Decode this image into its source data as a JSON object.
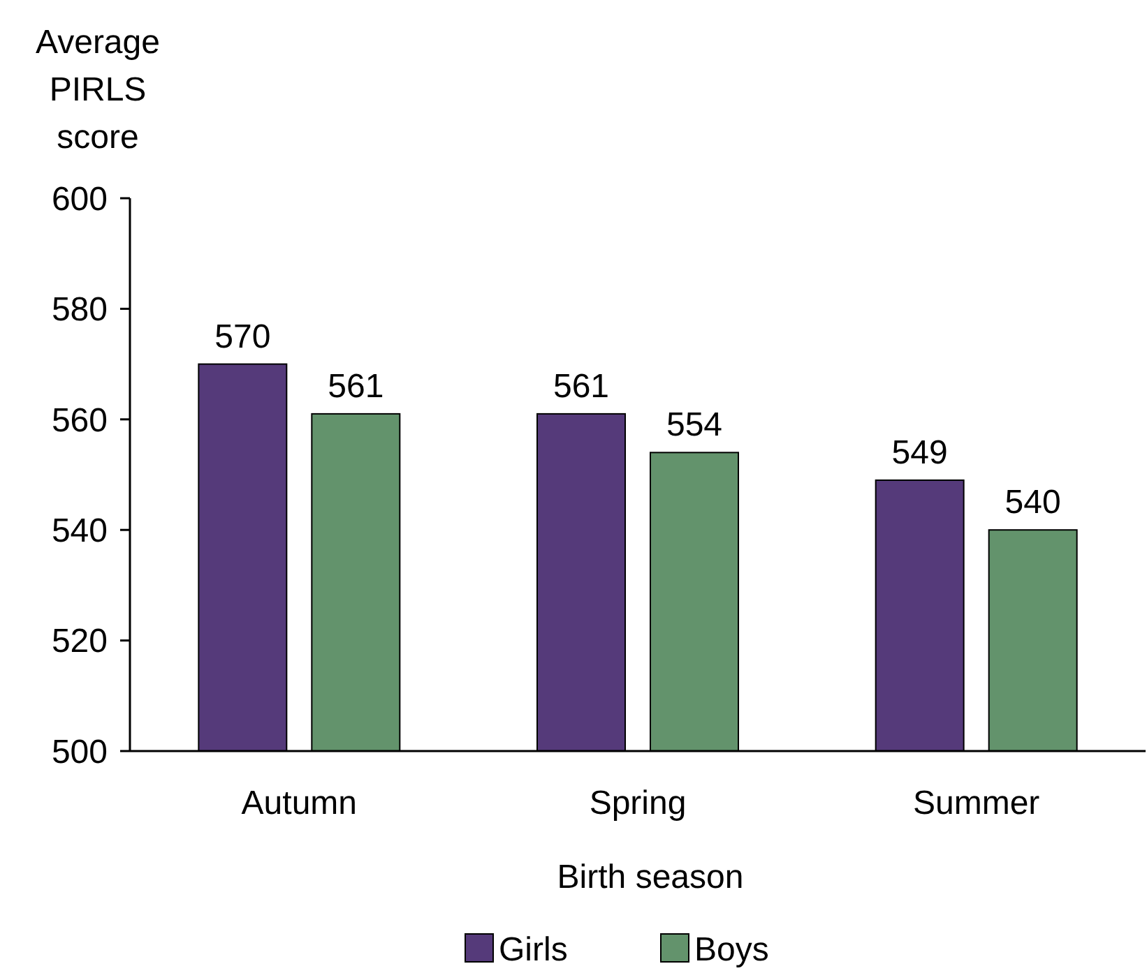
{
  "chart_data": {
    "type": "bar",
    "xlabel": "Birth season",
    "ylabel": "Average PIRLS score",
    "categories": [
      "Autumn",
      "Spring",
      "Summer"
    ],
    "series": [
      {
        "name": "Girls",
        "color": "#553a7a",
        "values": [
          570,
          561,
          549
        ]
      },
      {
        "name": "Boys",
        "color": "#63936c",
        "values": [
          561,
          554,
          540
        ]
      }
    ],
    "ylim": [
      500,
      600
    ],
    "yticks": [
      500,
      520,
      540,
      560,
      580,
      600
    ],
    "data_labels": true,
    "legend": "bottom",
    "grid": false
  }
}
